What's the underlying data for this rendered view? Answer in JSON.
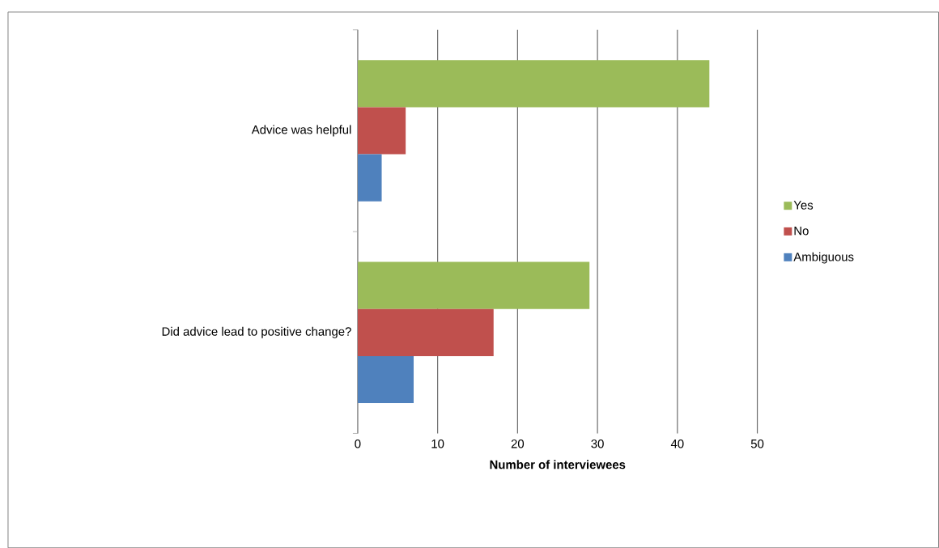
{
  "chart_data": {
    "type": "bar",
    "orientation": "horizontal",
    "xlabel": "Number of interviewees",
    "categories": [
      "Advice was helpful",
      "Did advice lead to positive change?"
    ],
    "series": [
      {
        "name": "Yes",
        "color": "#9bbb59",
        "values": [
          44,
          29
        ]
      },
      {
        "name": "No",
        "color": "#c0504d",
        "values": [
          6,
          17
        ]
      },
      {
        "name": "Ambiguous",
        "color": "#4f81bd",
        "values": [
          3,
          7
        ]
      }
    ],
    "xlim": [
      0,
      50
    ],
    "xticks": [
      0,
      10,
      20,
      30,
      40,
      50
    ],
    "grid": "x",
    "legend": "right"
  }
}
